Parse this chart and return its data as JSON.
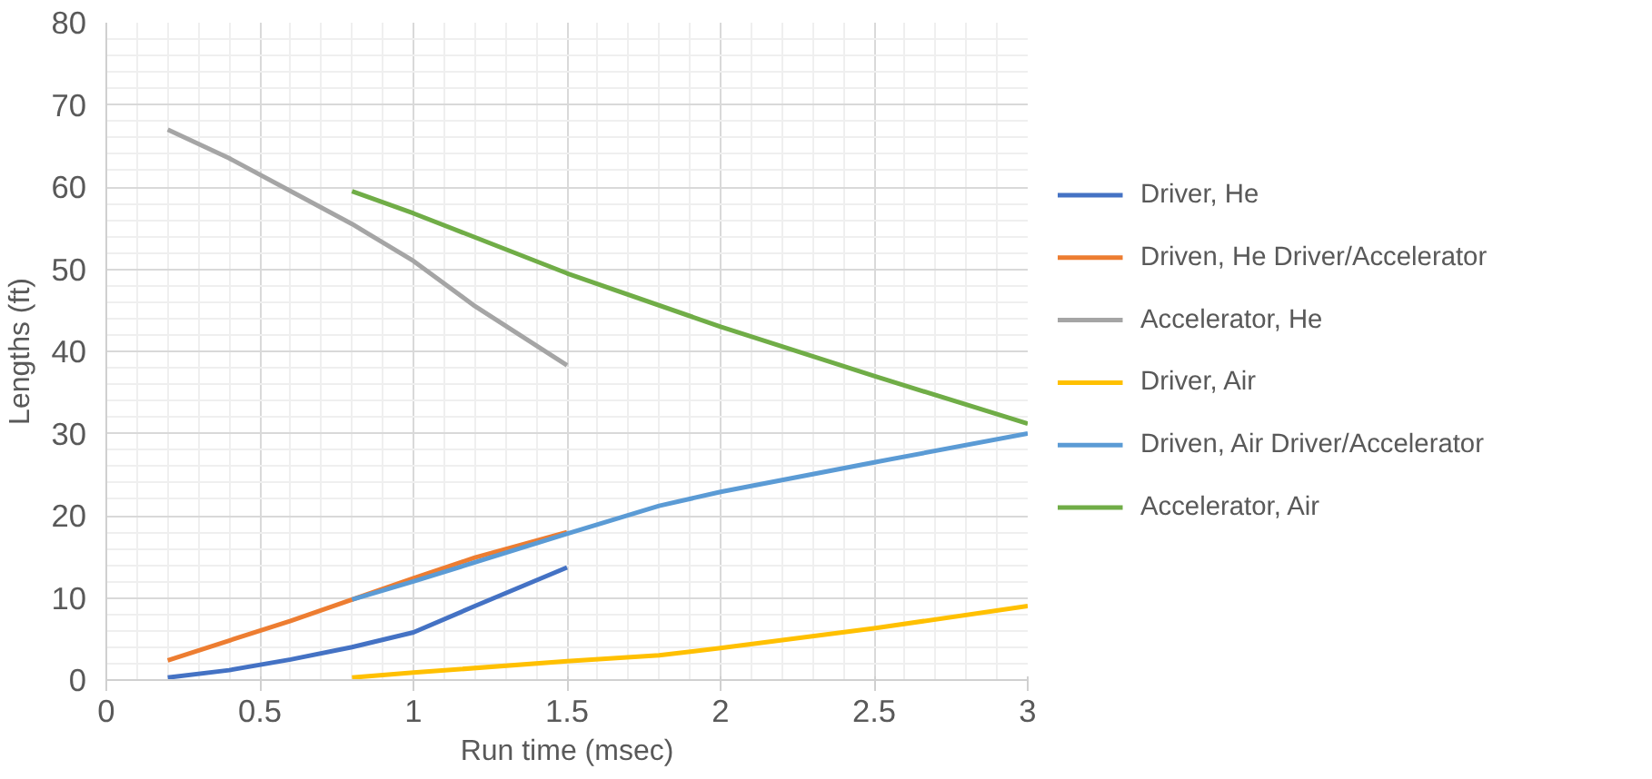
{
  "chart_data": {
    "type": "line",
    "xlabel": "Run time (msec)",
    "ylabel": "Lengths (ft)",
    "xlim": [
      0,
      3
    ],
    "ylim": [
      0,
      80
    ],
    "xticks": [
      0,
      0.5,
      1,
      1.5,
      2,
      2.5,
      3
    ],
    "yticks": [
      0,
      10,
      20,
      30,
      40,
      50,
      60,
      70,
      80
    ],
    "grid": true,
    "legend": "right",
    "marker": "none",
    "series": [
      {
        "name": "Driver, He",
        "color": "#4472c4",
        "x": [
          0.2,
          0.4,
          0.6,
          0.8,
          1.0,
          1.2,
          1.5
        ],
        "values": [
          0.3,
          1.2,
          2.5,
          4,
          5.8,
          9,
          13.7
        ]
      },
      {
        "name": "Driven, He Driver/Accelerator",
        "color": "#ed7d31",
        "x": [
          0.2,
          0.4,
          0.6,
          0.8,
          1.0,
          1.2,
          1.5
        ],
        "values": [
          2.4,
          4.8,
          7.2,
          9.8,
          12.4,
          14.9,
          18
        ]
      },
      {
        "name": "Accelerator, He",
        "color": "#a5a5a5",
        "x": [
          0.2,
          0.4,
          0.6,
          0.8,
          1.0,
          1.2,
          1.5
        ],
        "values": [
          67,
          63.5,
          59.5,
          55.5,
          51,
          45.5,
          38.3
        ]
      },
      {
        "name": "Driver, Air",
        "color": "#ffc000",
        "x": [
          0.8,
          1.0,
          1.5,
          1.8,
          2.0,
          2.5,
          3.0
        ],
        "values": [
          0.3,
          0.9,
          2.3,
          3.0,
          3.9,
          6.3,
          9.0
        ]
      },
      {
        "name": "Driven, Air Driver/Accelerator",
        "color": "#5b9bd5",
        "x": [
          0.8,
          1.0,
          1.5,
          1.8,
          2.0,
          2.5,
          3.0
        ],
        "values": [
          9.8,
          12,
          17.8,
          21.2,
          22.9,
          26.5,
          30
        ]
      },
      {
        "name": "Accelerator, Air",
        "color": "#70ad47",
        "x": [
          0.8,
          1.0,
          1.5,
          2.0,
          2.5,
          3.0
        ],
        "values": [
          59.5,
          56.8,
          49.5,
          43.0,
          37,
          31.2
        ]
      }
    ]
  }
}
